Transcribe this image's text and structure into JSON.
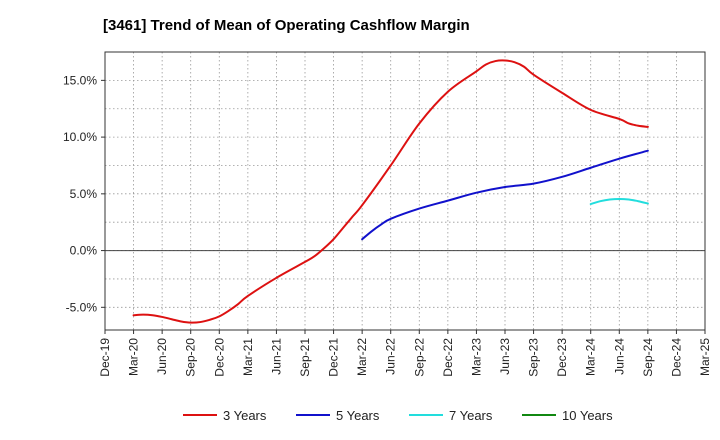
{
  "chart_data": {
    "type": "line",
    "title": "[3461]  Trend of Mean of Operating Cashflow Margin",
    "xlabel": "",
    "ylabel": "",
    "ylim": [
      -7,
      17.5
    ],
    "yticks": [
      -5,
      0,
      5,
      10,
      15
    ],
    "ytick_labels": [
      "-5.0%",
      "0.0%",
      "5.0%",
      "10.0%",
      "15.0%"
    ],
    "x_tick_labels": [
      "Dec-19",
      "Mar-20",
      "Jun-20",
      "Sep-20",
      "Dec-20",
      "Mar-21",
      "Jun-21",
      "Sep-21",
      "Dec-21",
      "Mar-22",
      "Jun-22",
      "Sep-22",
      "Dec-22",
      "Mar-23",
      "Jun-23",
      "Sep-23",
      "Dec-23",
      "Mar-24",
      "Jun-24",
      "Sep-24",
      "Dec-24",
      "Mar-25"
    ],
    "grid": true,
    "legend_position": "bottom",
    "series": [
      {
        "name": "3 Years",
        "color": "#dd1111",
        "x": [
          "Mar-20",
          "Apr-20",
          "May-20",
          "Jun-20",
          "Jul-20",
          "Aug-20",
          "Sep-20",
          "Oct-20",
          "Nov-20",
          "Dec-20",
          "Jan-21",
          "Feb-21",
          "Mar-21",
          "Jun-21",
          "Sep-21",
          "Oct-21",
          "Nov-21",
          "Dec-21",
          "Jan-22",
          "Feb-22",
          "Mar-22",
          "Jun-22",
          "Sep-22",
          "Dec-22",
          "Mar-23",
          "Apr-23",
          "May-23",
          "Jun-23",
          "Jul-23",
          "Aug-23",
          "Sep-23",
          "Dec-23",
          "Mar-24",
          "Jun-24",
          "Jul-24",
          "Aug-24",
          "Sep-24"
        ],
        "values": [
          -5.7,
          -5.65,
          -5.7,
          -5.85,
          -6.05,
          -6.25,
          -6.35,
          -6.3,
          -6.1,
          -5.8,
          -5.3,
          -4.7,
          -4.0,
          -2.4,
          -1.0,
          -0.5,
          0.2,
          1.0,
          2.0,
          3.0,
          4.0,
          7.5,
          11.2,
          14.0,
          15.8,
          16.4,
          16.7,
          16.75,
          16.6,
          16.2,
          15.5,
          13.9,
          12.4,
          11.6,
          11.2,
          11.0,
          10.9
        ]
      },
      {
        "name": "5 Years",
        "color": "#1111cc",
        "x": [
          "Mar-22",
          "Apr-22",
          "May-22",
          "Jun-22",
          "Sep-22",
          "Dec-22",
          "Mar-23",
          "Jun-23",
          "Sep-23",
          "Dec-23",
          "Mar-24",
          "Jun-24",
          "Sep-24"
        ],
        "values": [
          1.0,
          1.7,
          2.3,
          2.8,
          3.7,
          4.4,
          5.1,
          5.6,
          5.9,
          6.5,
          7.3,
          8.1,
          8.8
        ]
      },
      {
        "name": "7 Years",
        "color": "#22dddd",
        "x": [
          "Mar-24",
          "Apr-24",
          "May-24",
          "Jun-24",
          "Jul-24",
          "Aug-24",
          "Sep-24"
        ],
        "values": [
          4.1,
          4.35,
          4.5,
          4.55,
          4.5,
          4.35,
          4.15
        ]
      },
      {
        "name": "10 Years",
        "color": "#118811",
        "x": [],
        "values": []
      }
    ]
  }
}
